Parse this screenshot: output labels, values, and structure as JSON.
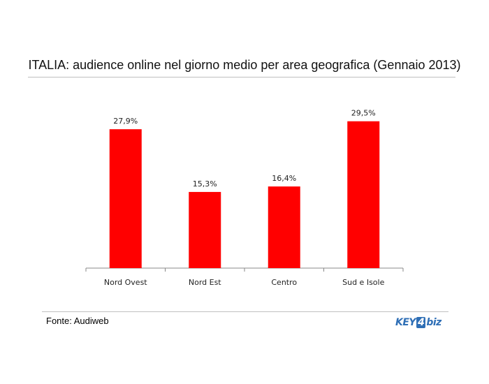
{
  "chart_data": {
    "type": "bar",
    "title": "ITALIA: audience online nel giorno medio per area geografica (Gennaio 2013)",
    "categories": [
      "Nord Ovest",
      "Nord Est",
      "Centro",
      "Sud e Isole"
    ],
    "values": [
      27.9,
      15.3,
      16.4,
      29.5
    ],
    "value_labels": [
      "27,9%",
      "15,3%",
      "16,4%",
      "29,5%"
    ],
    "ylim": [
      0,
      31
    ],
    "bar_color": "#ff0000",
    "grid": false,
    "legend": "none"
  },
  "source": "Fonte: Audiweb",
  "logo": {
    "key": "KEY",
    "num": "4",
    "biz": "biz"
  }
}
